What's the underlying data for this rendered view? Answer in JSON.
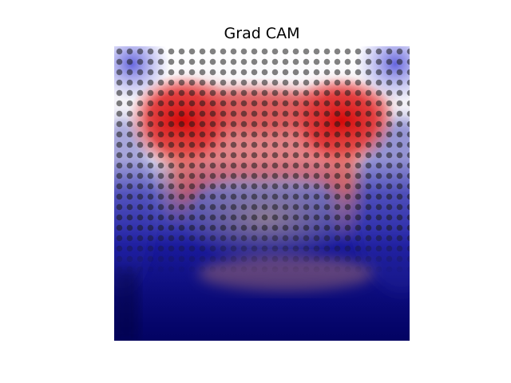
{
  "figure": {
    "title": "Grad CAM"
  },
  "heatmap": {
    "colormap": "seismic",
    "colors": {
      "negative": "#00008b",
      "neutral": "#ffffff",
      "positive": "#d40000"
    },
    "overlay": "dot-pattern"
  }
}
